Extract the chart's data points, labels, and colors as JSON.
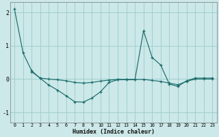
{
  "xlabel": "Humidex (Indice chaleur)",
  "x": [
    0,
    1,
    2,
    3,
    4,
    5,
    6,
    7,
    8,
    9,
    10,
    11,
    12,
    13,
    14,
    15,
    16,
    17,
    18,
    19,
    20,
    21,
    22,
    23
  ],
  "curve_main": [
    2.1,
    0.78,
    0.25,
    0.02,
    -0.18,
    -0.33,
    -0.5,
    -0.68,
    -0.69,
    -0.57,
    -0.38,
    -0.1,
    -0.02,
    -0.02,
    -0.02,
    1.45,
    0.65,
    0.42,
    -0.15,
    -0.22,
    -0.05,
    0.03,
    0.03,
    0.03
  ],
  "curve_flat": [
    null,
    null,
    0.22,
    0.03,
    0.0,
    -0.02,
    -0.05,
    -0.1,
    -0.12,
    -0.1,
    -0.06,
    -0.03,
    -0.01,
    -0.01,
    -0.01,
    -0.01,
    -0.04,
    -0.07,
    -0.12,
    -0.17,
    -0.07,
    0.0,
    0.0,
    0.0
  ],
  "background_color": "#cce8e8",
  "grid_color": "#99cccc",
  "line_color": "#1a6b6b",
  "ylim": [
    -1.3,
    2.3
  ],
  "ytick_vals": [
    -1,
    0,
    1,
    2
  ],
  "ytick_labels": [
    "-1",
    "0",
    "1",
    "2"
  ],
  "figsize": [
    3.2,
    2.0
  ],
  "dpi": 100
}
